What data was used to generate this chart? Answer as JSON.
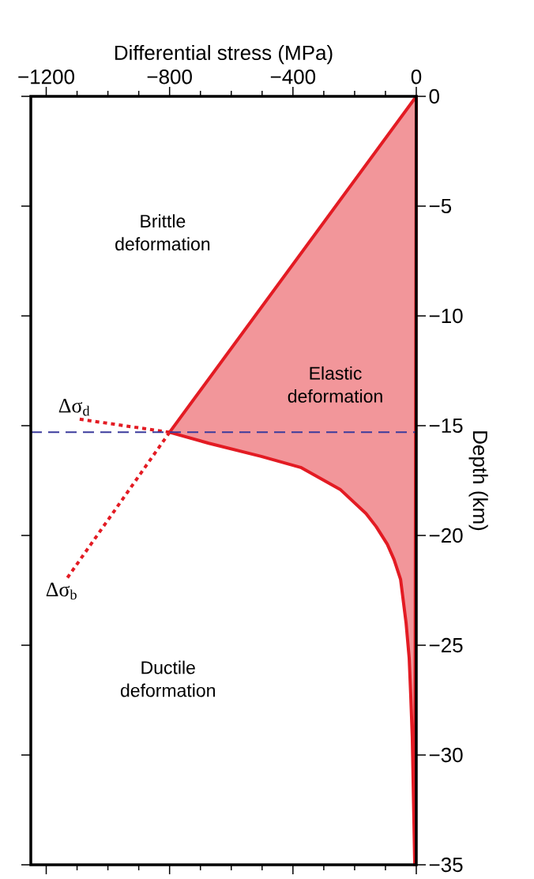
{
  "chart_data": {
    "type": "line",
    "xlabel": "Differential stress (MPa)",
    "ylabel": "Depth (km)",
    "xlim": [
      -1250,
      0
    ],
    "ylim": [
      -35,
      0
    ],
    "xticks": [
      {
        "value": -1200,
        "label": "−1200"
      },
      {
        "value": -1100,
        "label": null
      },
      {
        "value": -1000,
        "label": null
      },
      {
        "value": -900,
        "label": null
      },
      {
        "value": -800,
        "label": "−800"
      },
      {
        "value": -700,
        "label": null
      },
      {
        "value": -600,
        "label": null
      },
      {
        "value": -500,
        "label": null
      },
      {
        "value": -400,
        "label": "−400"
      },
      {
        "value": -300,
        "label": null
      },
      {
        "value": -200,
        "label": null
      },
      {
        "value": -100,
        "label": null
      },
      0
    ],
    "yticks": [
      0,
      {
        "value": -5,
        "label": "−5"
      },
      {
        "value": -10,
        "label": "−10"
      },
      {
        "value": -15,
        "label": "−15"
      },
      {
        "value": -20,
        "label": "−20"
      },
      {
        "value": -25,
        "label": "−25"
      },
      {
        "value": -30,
        "label": "−30"
      },
      {
        "value": -35,
        "label": "−35"
      }
    ],
    "series": [
      {
        "type": "area",
        "color": "#e31b23",
        "x": [
          0,
          -800,
          -673,
          -503,
          -375,
          -247,
          -163,
          -130,
          -94,
          -72,
          -51,
          -33,
          -23,
          -18,
          -13,
          -8,
          -5
        ],
        "values": [
          0,
          -15.3,
          -15.8,
          -16.4,
          -16.9,
          -17.9,
          -19.0,
          -19.6,
          -20.4,
          -21.1,
          -22.0,
          -24.0,
          -25.6,
          -27.3,
          -29.2,
          -32.8,
          -35
        ]
      },
      {
        "name": "Δσ$_{d}$",
        "color": "#e31b23",
        "line_style": "dotted",
        "x": [
          -800,
          -1094
        ],
        "values": [
          -15.3,
          -14.7
        ]
      },
      {
        "name": "Δσ$_{b}$",
        "color": "#e31b23",
        "line_style": "dotted",
        "x": [
          -800,
          -1135
        ],
        "values": [
          -15.3,
          -22.0
        ]
      }
    ],
    "ref_lines": [
      {
        "axis": "y",
        "value": -15.3,
        "color": "#3b3b9c",
        "line_style": "dashed"
      }
    ],
    "annotations": [
      "Brittle deformation",
      "Elastic deformation",
      "Ductile deformation"
    ]
  }
}
